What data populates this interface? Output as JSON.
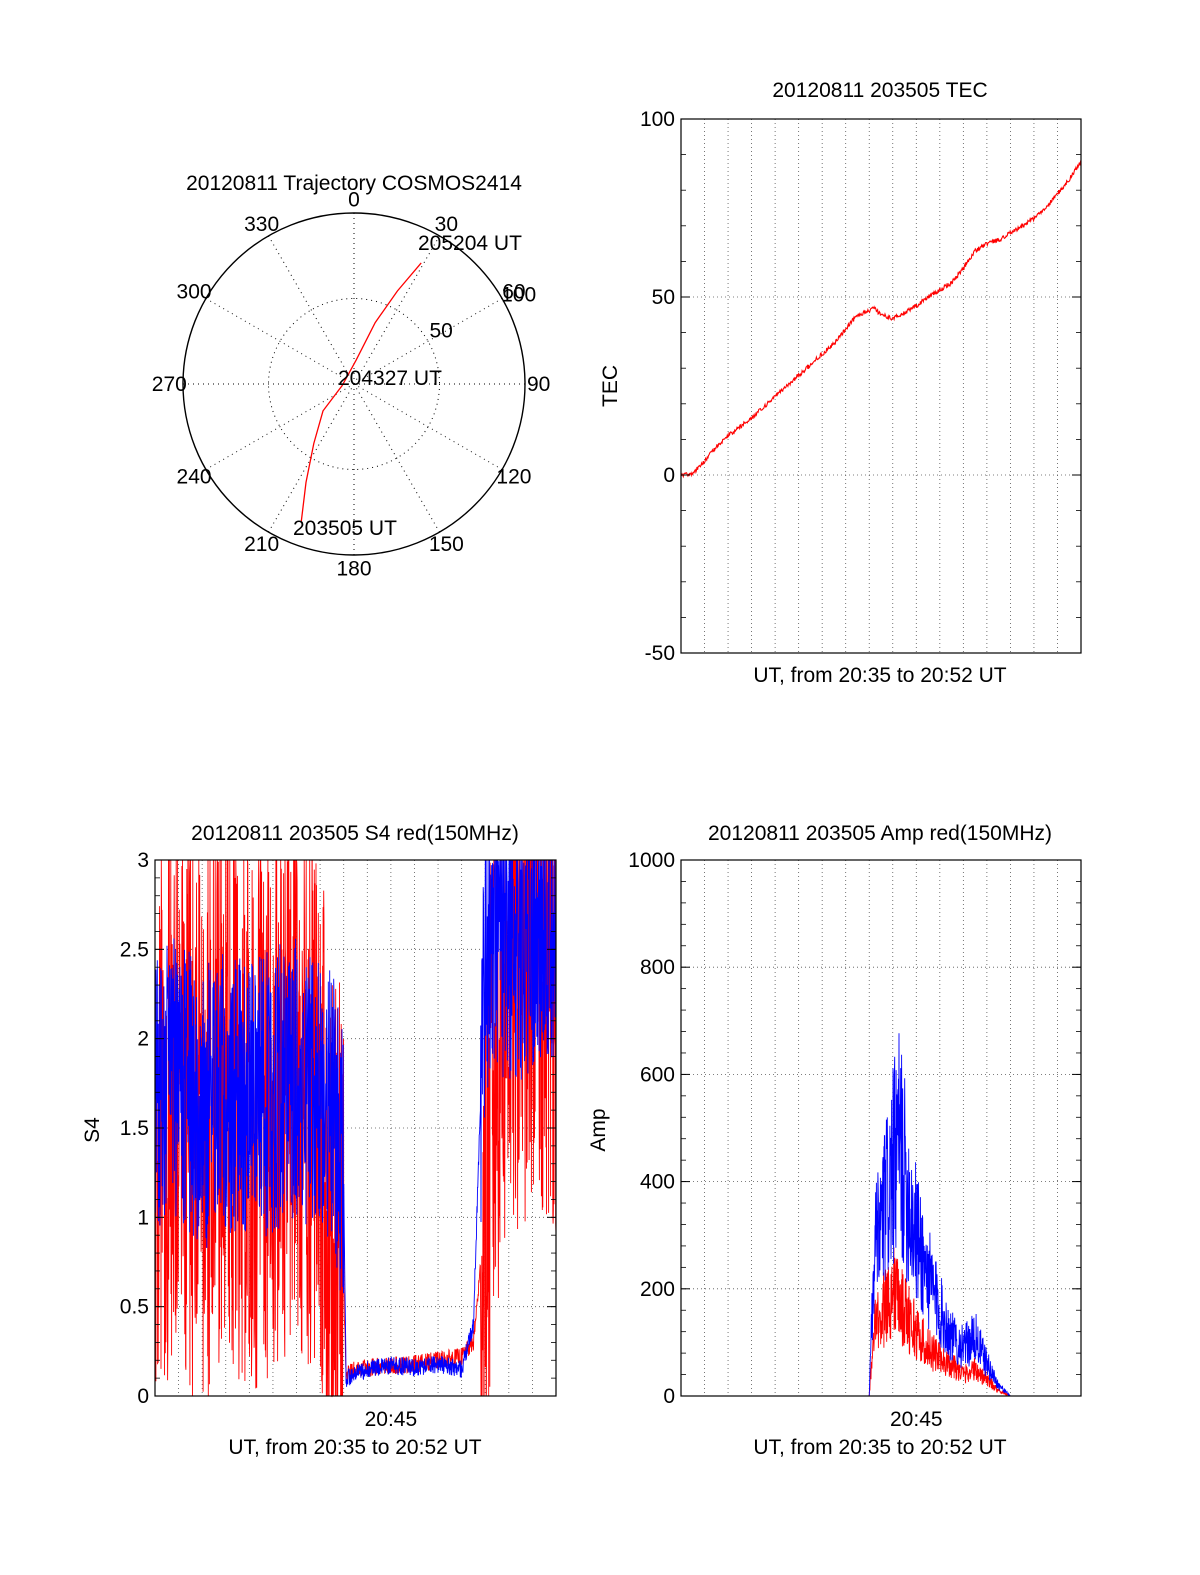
{
  "chart_data": [
    {
      "type": "polar",
      "title": "20120811 Trajectory COSMOS2414",
      "azimuth_labels": [
        "0",
        "30",
        "60",
        "90",
        "120",
        "150",
        "180",
        "210",
        "240",
        "270",
        "300",
        "330"
      ],
      "radial_labels": [
        "50",
        "100"
      ],
      "radial_range": [
        0,
        100
      ],
      "grid": true,
      "series": [
        {
          "color": "#ff0000",
          "points": [
            {
              "azimuth": 201,
              "radius": 86
            },
            {
              "azimuth": 206,
              "radius": 64
            },
            {
              "azimuth": 214,
              "radius": 42
            },
            {
              "azimuth": 229,
              "radius": 24
            },
            {
              "azimuth": 262,
              "radius": 7
            },
            {
              "azimuth": 5,
              "radius": 14
            },
            {
              "azimuth": 19,
              "radius": 38
            },
            {
              "azimuth": 25,
              "radius": 60
            },
            {
              "azimuth": 29,
              "radius": 81
            }
          ]
        }
      ],
      "annotations": [
        {
          "text": "205204 UT",
          "azimuth": 27,
          "radius": 88
        },
        {
          "text": "204327 UT",
          "azimuth": 0,
          "radius": 0
        },
        {
          "text": "203505 UT",
          "azimuth": 180,
          "radius": 86
        }
      ]
    },
    {
      "type": "line",
      "title": "20120811 203505 TEC",
      "xlabel": "UT, from 20:35 to 20:52 UT",
      "ylabel": "TEC",
      "ylim": [
        -50,
        100
      ],
      "yticks": [
        "-50",
        "0",
        "50",
        "100"
      ],
      "xlim_minutes": [
        0,
        17
      ],
      "grid": true,
      "series": [
        {
          "color": "#ff0000",
          "x_minutes": [
            0,
            0.5,
            1,
            1.5,
            2,
            2.5,
            3,
            3.5,
            4,
            4.5,
            5,
            5.5,
            6,
            6.5,
            7,
            7.5,
            8,
            8.2,
            8.5,
            9,
            9.5,
            10,
            10.5,
            11,
            11.5,
            12,
            12.5,
            13,
            13.5,
            14,
            14.5,
            15,
            15.5,
            16,
            16.5,
            17
          ],
          "values": [
            0,
            0.5,
            4,
            8,
            11,
            13.5,
            16,
            19,
            22,
            25,
            28,
            31,
            34,
            37,
            41,
            45,
            46,
            47,
            45,
            44,
            45.5,
            47.5,
            50,
            52,
            54,
            58,
            63,
            65,
            66,
            68,
            70,
            72,
            75,
            79,
            83,
            88
          ]
        }
      ]
    },
    {
      "type": "line",
      "title": "20120811 203505 S4 red(150MHz)",
      "xlabel": "UT, from 20:35 to 20:52 UT",
      "ylabel": "S4",
      "ylim": [
        0,
        3
      ],
      "yticks": [
        "0",
        "0.5",
        "1",
        "1.5",
        "2",
        "2.5",
        "3"
      ],
      "xticks": [
        "20:45"
      ],
      "xlim_minutes": [
        0,
        17
      ],
      "grid": true,
      "series": [
        {
          "color": "#ff0000",
          "x_minutes": [
            0,
            1,
            2,
            3,
            4,
            5,
            6,
            7,
            7.5,
            8,
            8.1,
            8.5,
            9,
            10,
            11,
            12,
            13,
            13.5,
            14,
            14.5,
            15,
            16,
            17
          ],
          "values": [
            1.6,
            1.7,
            1.5,
            1.8,
            1.6,
            1.7,
            1.9,
            1.6,
            1.0,
            0.6,
            0.12,
            0.15,
            0.16,
            0.17,
            0.18,
            0.2,
            0.22,
            0.3,
            1.0,
            2.0,
            2.4,
            2.6,
            2.5
          ]
        },
        {
          "color": "#0000ff",
          "x_minutes": [
            0,
            1,
            2,
            3,
            4,
            5,
            6,
            7,
            7.5,
            8,
            8.1,
            8.5,
            9,
            10,
            11,
            12,
            13,
            13.5,
            14,
            14.5,
            15,
            16,
            17
          ],
          "values": [
            1.7,
            1.8,
            1.6,
            1.7,
            1.65,
            1.7,
            1.8,
            1.7,
            1.6,
            1.2,
            0.1,
            0.12,
            0.15,
            0.17,
            0.16,
            0.18,
            0.15,
            0.4,
            2.5,
            2.6,
            2.5,
            2.6,
            2.7
          ]
        }
      ]
    },
    {
      "type": "line",
      "title": "20120811 203505 Amp red(150MHz)",
      "xlabel": "UT, from 20:35 to 20:52 UT",
      "ylabel": "Amp",
      "ylim": [
        0,
        1000
      ],
      "yticks": [
        "0",
        "200",
        "400",
        "600",
        "800",
        "1000"
      ],
      "xticks": [
        "20:45"
      ],
      "xlim_minutes": [
        0,
        17
      ],
      "grid": true,
      "series": [
        {
          "color": "#ff0000",
          "x_minutes": [
            0,
            8,
            8.2,
            8.5,
            9,
            9.5,
            10,
            10.5,
            11,
            11.5,
            12,
            12.5,
            13,
            13.5,
            14,
            17
          ],
          "values": [
            0,
            0,
            120,
            150,
            200,
            160,
            120,
            90,
            70,
            60,
            40,
            50,
            30,
            10,
            0,
            0
          ]
        },
        {
          "color": "#0000ff",
          "x_minutes": [
            0,
            8,
            8.2,
            8.5,
            9,
            9.3,
            9.6,
            10,
            10.5,
            11,
            11.5,
            12,
            12.5,
            13,
            13.5,
            14,
            17
          ],
          "values": [
            0,
            0,
            250,
            320,
            420,
            480,
            380,
            300,
            220,
            160,
            110,
            90,
            110,
            60,
            20,
            0,
            0
          ]
        }
      ]
    }
  ]
}
